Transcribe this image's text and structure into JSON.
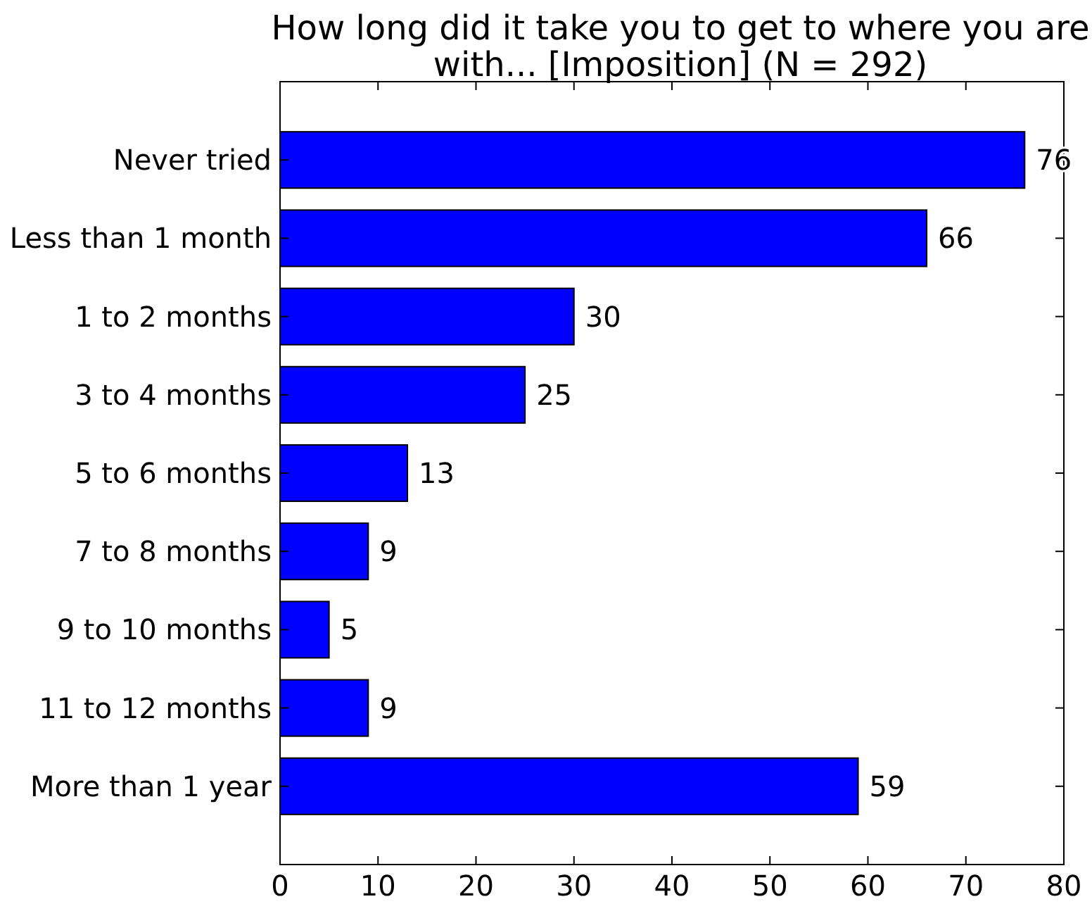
{
  "chart_data": {
    "type": "bar",
    "orientation": "horizontal",
    "title": "How long did it take you to get to where you are\nwith... [Imposition] (N = 292)",
    "categories": [
      "Never tried",
      "Less than 1 month",
      "1 to 2 months",
      "3 to 4 months",
      "5 to 6 months",
      "7 to 8 months",
      "9 to 10 months",
      "11 to 12 months",
      "More than 1 year"
    ],
    "values": [
      76,
      66,
      30,
      25,
      13,
      9,
      5,
      9,
      59
    ],
    "color": "#0000ff",
    "xlim": [
      0,
      80
    ],
    "xticks": [
      0,
      10,
      20,
      30,
      40,
      50,
      60,
      70,
      80
    ],
    "grid": false,
    "data_labels": true
  }
}
